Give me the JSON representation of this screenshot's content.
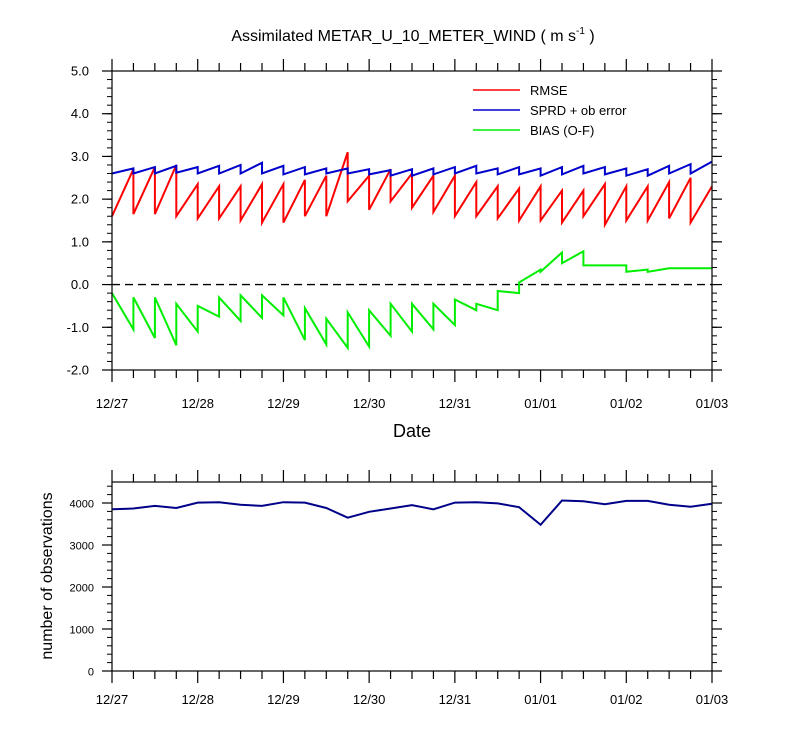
{
  "chart_data": [
    {
      "type": "line",
      "title_main": "Assimilated METAR_U_10_METER_WIND",
      "title_units": "( m s",
      "title_units_sup": "-1",
      "title_units_end": " )",
      "xlabel": "Date",
      "ylabel": "",
      "x_tick_labels": [
        "12/27",
        "12/28",
        "12/29",
        "12/30",
        "12/31",
        "01/01",
        "01/02",
        "01/03"
      ],
      "y_tick_labels": [
        "-2.0",
        "-1.0",
        "0.0",
        "1.0",
        "2.0",
        "3.0",
        "4.0",
        "5.0"
      ],
      "ylim": [
        -2.0,
        5.0
      ],
      "xlim_days": [
        0,
        7
      ],
      "zero_line": true,
      "legend_position": "top-right",
      "series": [
        {
          "name": "RMSE",
          "color": "#ff0000",
          "x": [
            0,
            0.25,
            0.25,
            0.5,
            0.5,
            0.75,
            0.75,
            1.0,
            1.0,
            1.25,
            1.25,
            1.5,
            1.5,
            1.75,
            1.75,
            2.0,
            2.0,
            2.25,
            2.25,
            2.5,
            2.5,
            2.75,
            2.75,
            3.0,
            3.0,
            3.25,
            3.25,
            3.5,
            3.5,
            3.75,
            3.75,
            4.0,
            4.0,
            4.25,
            4.25,
            4.5,
            4.5,
            4.75,
            4.75,
            5.0,
            5.0,
            5.25,
            5.25,
            5.5,
            5.5,
            5.75,
            5.75,
            6.0,
            6.0,
            6.25,
            6.25,
            6.5,
            6.5,
            6.75,
            6.75,
            7.0
          ],
          "y": [
            1.6,
            2.7,
            1.65,
            2.75,
            1.65,
            2.8,
            1.6,
            2.35,
            1.55,
            2.3,
            1.55,
            2.3,
            1.5,
            2.35,
            1.45,
            2.35,
            1.45,
            2.45,
            1.6,
            2.55,
            1.6,
            3.1,
            1.95,
            2.55,
            1.75,
            2.7,
            1.95,
            2.6,
            1.8,
            2.55,
            1.7,
            2.55,
            1.6,
            2.4,
            1.6,
            2.3,
            1.55,
            2.25,
            1.5,
            2.3,
            1.5,
            2.2,
            1.45,
            2.2,
            1.6,
            2.35,
            1.4,
            2.3,
            1.5,
            2.3,
            1.5,
            2.4,
            1.55,
            2.5,
            1.45,
            2.3
          ]
        },
        {
          "name": "SPRD + ob error",
          "color": "#0000cc",
          "x": [
            0,
            0.25,
            0.25,
            0.5,
            0.5,
            0.75,
            0.75,
            1.0,
            1.0,
            1.25,
            1.25,
            1.5,
            1.5,
            1.75,
            1.75,
            2.0,
            2.0,
            2.25,
            2.25,
            2.5,
            2.5,
            2.75,
            2.75,
            3.0,
            3.0,
            3.25,
            3.25,
            3.5,
            3.5,
            3.75,
            3.75,
            4.0,
            4.0,
            4.25,
            4.25,
            4.5,
            4.5,
            4.75,
            4.75,
            5.0,
            5.0,
            5.25,
            5.25,
            5.5,
            5.5,
            5.75,
            5.75,
            6.0,
            6.0,
            6.25,
            6.25,
            6.5,
            6.5,
            6.75,
            6.75,
            7.0
          ],
          "y": [
            2.6,
            2.72,
            2.6,
            2.75,
            2.6,
            2.78,
            2.62,
            2.75,
            2.6,
            2.78,
            2.6,
            2.8,
            2.6,
            2.85,
            2.6,
            2.78,
            2.58,
            2.75,
            2.58,
            2.72,
            2.6,
            2.72,
            2.6,
            2.7,
            2.58,
            2.68,
            2.55,
            2.7,
            2.55,
            2.72,
            2.58,
            2.75,
            2.6,
            2.78,
            2.6,
            2.72,
            2.58,
            2.75,
            2.58,
            2.72,
            2.55,
            2.75,
            2.58,
            2.78,
            2.6,
            2.75,
            2.58,
            2.72,
            2.55,
            2.7,
            2.55,
            2.78,
            2.6,
            2.82,
            2.6,
            2.88
          ]
        },
        {
          "name": "BIAS (O-F)",
          "color": "#00ee00",
          "x": [
            0,
            0.25,
            0.25,
            0.5,
            0.5,
            0.75,
            0.75,
            1.0,
            1.0,
            1.25,
            1.25,
            1.5,
            1.5,
            1.75,
            1.75,
            2.0,
            2.0,
            2.25,
            2.25,
            2.5,
            2.5,
            2.75,
            2.75,
            3.0,
            3.0,
            3.25,
            3.25,
            3.5,
            3.5,
            3.75,
            3.75,
            4.0,
            4.0,
            4.25,
            4.25,
            4.5,
            4.5,
            4.75,
            4.75,
            5.0,
            5.0,
            5.25,
            5.25,
            5.5,
            5.5,
            5.75,
            5.75,
            6.0,
            6.0,
            6.25,
            6.25,
            6.5,
            6.5,
            6.75,
            6.75,
            7.0
          ],
          "y": [
            -0.2,
            -1.05,
            -0.3,
            -1.25,
            -0.3,
            -1.42,
            -0.45,
            -1.1,
            -0.5,
            -0.75,
            -0.3,
            -0.85,
            -0.25,
            -0.78,
            -0.25,
            -0.72,
            -0.3,
            -1.3,
            -0.55,
            -1.4,
            -0.8,
            -1.48,
            -0.65,
            -1.45,
            -0.6,
            -1.2,
            -0.45,
            -1.1,
            -0.45,
            -1.05,
            -0.45,
            -0.95,
            -0.35,
            -0.6,
            -0.45,
            -0.6,
            -0.15,
            -0.2,
            0.05,
            0.35,
            0.3,
            0.75,
            0.5,
            0.78,
            0.45,
            0.45,
            0.45,
            0.45,
            0.3,
            0.35,
            0.3,
            0.38,
            0.38,
            0.38,
            0.38,
            0.38
          ]
        }
      ]
    },
    {
      "type": "line",
      "title": "",
      "xlabel": "",
      "ylabel": "number of observations",
      "x_tick_labels": [
        "12/27",
        "12/28",
        "12/29",
        "12/30",
        "12/31",
        "01/01",
        "01/02",
        "01/03"
      ],
      "y_tick_labels": [
        "0",
        "1000",
        "2000",
        "3000",
        "4000"
      ],
      "ylim": [
        0,
        4500
      ],
      "xlim_days": [
        0,
        7
      ],
      "series": [
        {
          "color": "#000088",
          "x": [
            0,
            0.25,
            0.5,
            0.75,
            1.0,
            1.25,
            1.5,
            1.75,
            2.0,
            2.25,
            2.5,
            2.75,
            3.0,
            3.25,
            3.5,
            3.75,
            4.0,
            4.25,
            4.5,
            4.75,
            5.0,
            5.25,
            5.5,
            5.75,
            6.0,
            6.25,
            6.5,
            6.75,
            7.0
          ],
          "y": [
            3850,
            3870,
            3930,
            3880,
            4010,
            4020,
            3960,
            3930,
            4020,
            4010,
            3880,
            3650,
            3790,
            3870,
            3950,
            3850,
            4010,
            4020,
            3990,
            3900,
            3480,
            4060,
            4040,
            3970,
            4050,
            4050,
            3960,
            3910,
            3980
          ]
        }
      ]
    }
  ]
}
